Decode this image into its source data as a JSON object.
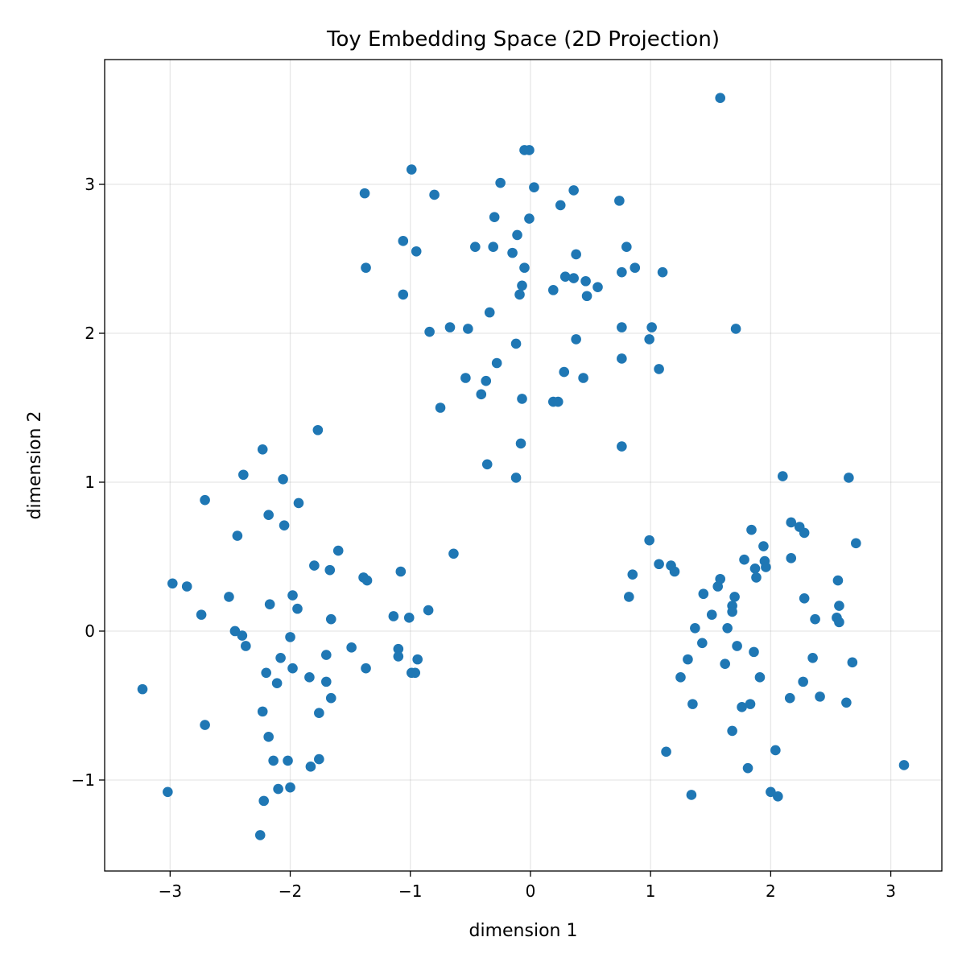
{
  "chart_data": {
    "type": "scatter",
    "title": "Toy Embedding Space (2D Projection)",
    "xlabel": "dimension 1",
    "ylabel": "dimension 2",
    "xlim": [
      -3.545,
      3.425
    ],
    "ylim": [
      -1.611,
      3.838
    ],
    "xticks": [
      -3,
      -2,
      -1,
      0,
      1,
      2,
      3
    ],
    "yticks": [
      -1,
      0,
      1,
      2,
      3
    ],
    "xtick_labels": [
      "−3",
      "−2",
      "−1",
      "0",
      "1",
      "2",
      "3"
    ],
    "ytick_labels": [
      "−1",
      "0",
      "1",
      "2",
      "3"
    ],
    "grid": true,
    "color": "#1f77b4",
    "points": [
      [
        1.58,
        3.58
      ],
      [
        -0.05,
        3.23
      ],
      [
        -0.01,
        3.23
      ],
      [
        -0.99,
        3.1
      ],
      [
        -1.38,
        2.94
      ],
      [
        -0.8,
        2.93
      ],
      [
        -0.25,
        3.01
      ],
      [
        0.03,
        2.98
      ],
      [
        0.36,
        2.96
      ],
      [
        0.74,
        2.89
      ],
      [
        0.25,
        2.86
      ],
      [
        -0.3,
        2.78
      ],
      [
        -0.01,
        2.77
      ],
      [
        -1.06,
        2.62
      ],
      [
        -0.11,
        2.66
      ],
      [
        -0.46,
        2.58
      ],
      [
        -0.31,
        2.58
      ],
      [
        -0.95,
        2.55
      ],
      [
        0.8,
        2.58
      ],
      [
        -0.15,
        2.54
      ],
      [
        0.38,
        2.53
      ],
      [
        -1.37,
        2.44
      ],
      [
        -0.05,
        2.44
      ],
      [
        0.29,
        2.38
      ],
      [
        0.36,
        2.37
      ],
      [
        0.46,
        2.35
      ],
      [
        0.56,
        2.31
      ],
      [
        0.76,
        2.41
      ],
      [
        0.87,
        2.44
      ],
      [
        1.1,
        2.41
      ],
      [
        -0.07,
        2.32
      ],
      [
        0.19,
        2.29
      ],
      [
        -1.06,
        2.26
      ],
      [
        -0.09,
        2.26
      ],
      [
        0.47,
        2.25
      ],
      [
        -0.34,
        2.14
      ],
      [
        -0.84,
        2.01
      ],
      [
        -0.67,
        2.04
      ],
      [
        -0.52,
        2.03
      ],
      [
        0.76,
        2.04
      ],
      [
        1.01,
        2.04
      ],
      [
        0.38,
        1.96
      ],
      [
        -0.12,
        1.93
      ],
      [
        0.99,
        1.96
      ],
      [
        -0.28,
        1.8
      ],
      [
        0.76,
        1.83
      ],
      [
        1.07,
        1.76
      ],
      [
        -0.54,
        1.7
      ],
      [
        0.28,
        1.74
      ],
      [
        0.44,
        1.7
      ],
      [
        -0.37,
        1.68
      ],
      [
        -0.41,
        1.59
      ],
      [
        -0.07,
        1.56
      ],
      [
        0.19,
        1.54
      ],
      [
        0.23,
        1.54
      ],
      [
        -0.75,
        1.5
      ],
      [
        -0.08,
        1.26
      ],
      [
        0.76,
        1.24
      ],
      [
        -0.36,
        1.12
      ],
      [
        -0.12,
        1.03
      ],
      [
        1.71,
        2.03
      ],
      [
        -1.77,
        1.35
      ],
      [
        -2.23,
        1.22
      ],
      [
        -2.39,
        1.05
      ],
      [
        -2.06,
        1.02
      ],
      [
        -2.71,
        0.88
      ],
      [
        -1.93,
        0.86
      ],
      [
        -2.18,
        0.78
      ],
      [
        -2.05,
        0.71
      ],
      [
        -2.44,
        0.64
      ],
      [
        -1.6,
        0.54
      ],
      [
        -0.64,
        0.52
      ],
      [
        -1.8,
        0.44
      ],
      [
        -1.67,
        0.41
      ],
      [
        -1.08,
        0.4
      ],
      [
        -2.98,
        0.32
      ],
      [
        -2.86,
        0.3
      ],
      [
        -1.39,
        0.36
      ],
      [
        -1.36,
        0.34
      ],
      [
        -2.51,
        0.23
      ],
      [
        -1.98,
        0.24
      ],
      [
        -2.17,
        0.18
      ],
      [
        -1.94,
        0.15
      ],
      [
        -2.74,
        0.11
      ],
      [
        -1.14,
        0.1
      ],
      [
        -1.01,
        0.09
      ],
      [
        -0.85,
        0.14
      ],
      [
        -1.66,
        0.08
      ],
      [
        -2.46,
        0.0
      ],
      [
        -2.4,
        -0.03
      ],
      [
        -2.37,
        -0.1
      ],
      [
        -2.0,
        -0.04
      ],
      [
        -1.49,
        -0.11
      ],
      [
        -1.7,
        -0.16
      ],
      [
        -1.1,
        -0.12
      ],
      [
        -1.1,
        -0.17
      ],
      [
        -0.94,
        -0.19
      ],
      [
        -2.08,
        -0.18
      ],
      [
        -1.98,
        -0.25
      ],
      [
        -2.2,
        -0.28
      ],
      [
        -1.37,
        -0.25
      ],
      [
        -1.84,
        -0.31
      ],
      [
        -1.7,
        -0.34
      ],
      [
        -2.11,
        -0.35
      ],
      [
        -0.99,
        -0.28
      ],
      [
        -0.96,
        -0.28
      ],
      [
        -1.66,
        -0.45
      ],
      [
        -3.23,
        -0.39
      ],
      [
        -2.23,
        -0.54
      ],
      [
        -1.76,
        -0.55
      ],
      [
        -2.71,
        -0.63
      ],
      [
        -2.18,
        -0.71
      ],
      [
        -2.14,
        -0.87
      ],
      [
        -2.02,
        -0.87
      ],
      [
        -1.76,
        -0.86
      ],
      [
        -1.83,
        -0.91
      ],
      [
        -2.1,
        -1.06
      ],
      [
        -2.0,
        -1.05
      ],
      [
        -3.02,
        -1.08
      ],
      [
        -2.22,
        -1.14
      ],
      [
        -2.25,
        -1.37
      ],
      [
        2.1,
        1.04
      ],
      [
        2.65,
        1.03
      ],
      [
        2.17,
        0.73
      ],
      [
        2.24,
        0.7
      ],
      [
        2.28,
        0.66
      ],
      [
        1.84,
        0.68
      ],
      [
        0.99,
        0.61
      ],
      [
        2.71,
        0.59
      ],
      [
        1.94,
        0.57
      ],
      [
        1.78,
        0.48
      ],
      [
        2.17,
        0.49
      ],
      [
        1.95,
        0.47
      ],
      [
        1.87,
        0.42
      ],
      [
        1.96,
        0.43
      ],
      [
        0.85,
        0.38
      ],
      [
        1.07,
        0.45
      ],
      [
        1.17,
        0.44
      ],
      [
        1.2,
        0.4
      ],
      [
        1.58,
        0.35
      ],
      [
        1.56,
        0.3
      ],
      [
        2.56,
        0.34
      ],
      [
        1.88,
        0.36
      ],
      [
        1.7,
        0.23
      ],
      [
        1.68,
        0.17
      ],
      [
        1.68,
        0.13
      ],
      [
        1.44,
        0.25
      ],
      [
        2.57,
        0.17
      ],
      [
        0.82,
        0.23
      ],
      [
        2.28,
        0.22
      ],
      [
        2.37,
        0.08
      ],
      [
        1.51,
        0.11
      ],
      [
        1.64,
        0.02
      ],
      [
        2.55,
        0.09
      ],
      [
        2.57,
        0.06
      ],
      [
        1.37,
        0.02
      ],
      [
        1.43,
        -0.08
      ],
      [
        1.72,
        -0.1
      ],
      [
        1.86,
        -0.14
      ],
      [
        2.35,
        -0.18
      ],
      [
        2.68,
        -0.21
      ],
      [
        1.62,
        -0.22
      ],
      [
        1.31,
        -0.19
      ],
      [
        1.25,
        -0.31
      ],
      [
        1.91,
        -0.31
      ],
      [
        2.27,
        -0.34
      ],
      [
        1.35,
        -0.49
      ],
      [
        2.16,
        -0.45
      ],
      [
        2.41,
        -0.44
      ],
      [
        1.76,
        -0.51
      ],
      [
        1.83,
        -0.49
      ],
      [
        2.63,
        -0.48
      ],
      [
        1.68,
        -0.67
      ],
      [
        1.13,
        -0.81
      ],
      [
        1.81,
        -0.92
      ],
      [
        2.04,
        -0.8
      ],
      [
        3.11,
        -0.9
      ],
      [
        1.34,
        -1.1
      ],
      [
        2.0,
        -1.08
      ],
      [
        2.06,
        -1.11
      ]
    ]
  }
}
